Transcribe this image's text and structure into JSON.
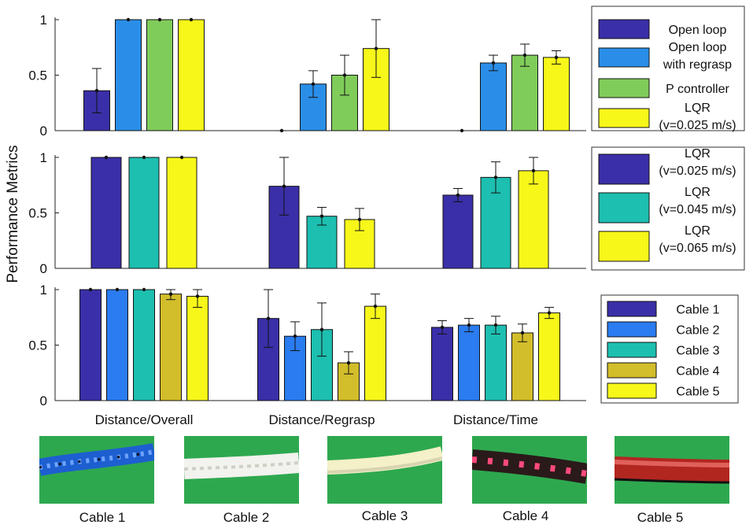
{
  "figure": {
    "ylabel": "Performance Metrics"
  },
  "chart_data": [
    {
      "type": "bar",
      "categories": [
        "Distance/Overall",
        "Distance/Regrasp",
        "Distance/Time"
      ],
      "ylim": [
        0,
        1
      ],
      "yticks": [
        0,
        0.5,
        1
      ],
      "ytick_labels": [
        "0",
        "0.5",
        "1"
      ],
      "legend_position": "right",
      "series": [
        {
          "name": "Open loop",
          "color": "#3a2fa8",
          "values": [
            0.36,
            0.0,
            0.0
          ],
          "err": [
            0.2,
            0,
            0
          ]
        },
        {
          "name": "Open loop with regrasp",
          "color": "#2a8ee8",
          "values": [
            1.0,
            0.42,
            0.61
          ],
          "err": [
            0,
            0.12,
            0.07
          ]
        },
        {
          "name": "P controller",
          "color": "#80cc5a",
          "values": [
            1.0,
            0.5,
            0.68
          ],
          "err": [
            0,
            0.18,
            0.1
          ]
        },
        {
          "name": "LQR (v=0.025 m/s)",
          "color": "#f7f71a",
          "values": [
            1.0,
            0.74,
            0.66
          ],
          "err": [
            0,
            0.26,
            0.06
          ]
        }
      ]
    },
    {
      "type": "bar",
      "categories": [
        "Distance/Overall",
        "Distance/Regrasp",
        "Distance/Time"
      ],
      "ylim": [
        0,
        1
      ],
      "yticks": [
        0,
        0.5,
        1
      ],
      "ytick_labels": [
        "0",
        "0.5",
        "1"
      ],
      "legend_position": "right",
      "series": [
        {
          "name": "LQR (v=0.025 m/s)",
          "color": "#3a2fa8",
          "values": [
            1.0,
            0.74,
            0.66
          ],
          "err": [
            0,
            0.26,
            0.06
          ]
        },
        {
          "name": "LQR (v=0.045 m/s)",
          "color": "#1dbfb0",
          "values": [
            1.0,
            0.47,
            0.82
          ],
          "err": [
            0,
            0.08,
            0.14
          ]
        },
        {
          "name": "LQR (v=0.065 m/s)",
          "color": "#f7f71a",
          "values": [
            1.0,
            0.44,
            0.88
          ],
          "err": [
            0,
            0.1,
            0.12
          ]
        }
      ]
    },
    {
      "type": "bar",
      "categories": [
        "Distance/Overall",
        "Distance/Regrasp",
        "Distance/Time"
      ],
      "ylim": [
        0,
        1
      ],
      "yticks": [
        0,
        0.5,
        1
      ],
      "ytick_labels": [
        "0",
        "0.5",
        "1"
      ],
      "legend_position": "right",
      "series": [
        {
          "name": "Cable 1",
          "color": "#3a2fa8",
          "values": [
            1.0,
            0.74,
            0.66
          ],
          "err": [
            0,
            0.26,
            0.06
          ]
        },
        {
          "name": "Cable 2",
          "color": "#2a7cf0",
          "values": [
            1.0,
            0.58,
            0.68
          ],
          "err": [
            0,
            0.13,
            0.06
          ]
        },
        {
          "name": "Cable 3",
          "color": "#1dbfb0",
          "values": [
            1.0,
            0.64,
            0.68
          ],
          "err": [
            0,
            0.24,
            0.08
          ]
        },
        {
          "name": "Cable 4",
          "color": "#d2bd2a",
          "values": [
            0.96,
            0.34,
            0.61
          ],
          "err": [
            0.05,
            0.1,
            0.08
          ]
        },
        {
          "name": "Cable 5",
          "color": "#f7f71a",
          "values": [
            0.94,
            0.85,
            0.79
          ],
          "err": [
            0.1,
            0.11,
            0.05
          ]
        }
      ]
    }
  ],
  "photos": [
    {
      "caption": "Cable 1"
    },
    {
      "caption": "Cable 2"
    },
    {
      "caption": "Cable 3"
    },
    {
      "caption": "Cable 4"
    },
    {
      "caption": "Cable 5"
    }
  ]
}
